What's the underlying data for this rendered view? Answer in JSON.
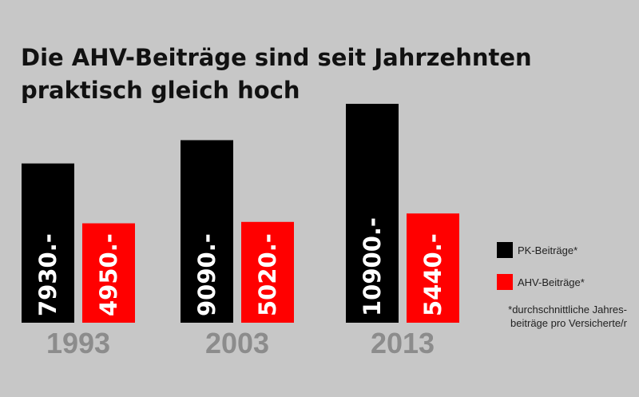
{
  "header": {
    "title_line1": "Die AHV-Beiträge sind seit Jahrzehnten",
    "title_line2": "praktisch gleich hoch"
  },
  "colors": {
    "background": "#c7c7c7",
    "pk": "#000000",
    "ahv": "#ff0000",
    "year_label": "#8c8c8c",
    "value_label": "#ffffff"
  },
  "legend": {
    "pk_label": "PK-Beiträge*",
    "ahv_label": "AHV-Beiträge*",
    "note_line1": "*durchschnittliche Jahres-",
    "note_line2": "beiträge pro Versicherte/r"
  },
  "chart_data": {
    "type": "bar",
    "title": "Die AHV-Beiträge sind seit Jahrzehnten praktisch gleich hoch",
    "categories": [
      "1993",
      "2003",
      "2013"
    ],
    "series": [
      {
        "name": "PK-Beiträge*",
        "color": "#000000",
        "values": [
          7930,
          9090,
          10900
        ],
        "labels": [
          "7930.-",
          "9090.-",
          "10900.-"
        ]
      },
      {
        "name": "AHV-Beiträge*",
        "color": "#ff0000",
        "values": [
          4950,
          5020,
          5440
        ],
        "labels": [
          "4950.-",
          "5020.-",
          "5440.-"
        ]
      }
    ],
    "grid": false,
    "legend_position": "right",
    "value_label_orientation": "vertical"
  }
}
